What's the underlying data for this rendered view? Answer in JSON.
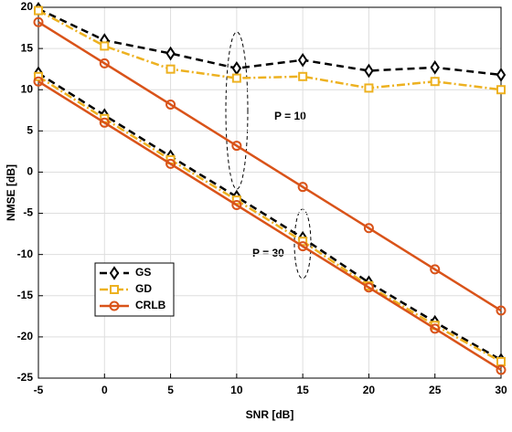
{
  "chart_data": {
    "type": "line",
    "xlabel": "SNR [dB]",
    "ylabel": "NMSE [dB]",
    "x": [
      -5,
      0,
      5,
      10,
      15,
      20,
      25,
      30
    ],
    "xlim": [
      -5,
      30
    ],
    "xticks": [
      -5,
      0,
      5,
      10,
      15,
      20,
      25,
      30
    ],
    "ylim": [
      -25,
      20
    ],
    "yticks": [
      -25,
      -20,
      -15,
      -10,
      -5,
      0,
      5,
      10,
      15,
      20
    ],
    "grid": true,
    "legend": "lower left",
    "groups": [
      {
        "label": "P = 10"
      },
      {
        "label": "P = 30"
      }
    ],
    "series": [
      {
        "name": "GS",
        "color": "#000000",
        "marker": "diamond",
        "dash": "8 5",
        "values": [
          [
            19.8,
            16,
            14.4,
            12.6,
            13.6,
            12.3,
            12.7,
            11.8
          ],
          [
            12,
            6.9,
            1.9,
            -3,
            -8,
            -13.4,
            -18.2,
            -22.8
          ]
        ]
      },
      {
        "name": "GD",
        "color": "#edb120",
        "marker": "square",
        "dash": "9 3 2 3",
        "values": [
          [
            19.6,
            15.3,
            12.5,
            11.4,
            11.6,
            10.2,
            11,
            10
          ],
          [
            11.6,
            6.5,
            1.5,
            -3.4,
            -8.4,
            -13.8,
            -18.6,
            -23
          ]
        ]
      },
      {
        "name": "CRLB",
        "color": "#d95319",
        "marker": "circle",
        "dash": "",
        "values": [
          [
            18.2,
            13.2,
            8.2,
            3.2,
            -1.8,
            -6.8,
            -11.8,
            -16.8
          ],
          [
            11,
            6,
            1,
            -4,
            -9,
            -14,
            -19,
            -24
          ]
        ]
      }
    ]
  }
}
